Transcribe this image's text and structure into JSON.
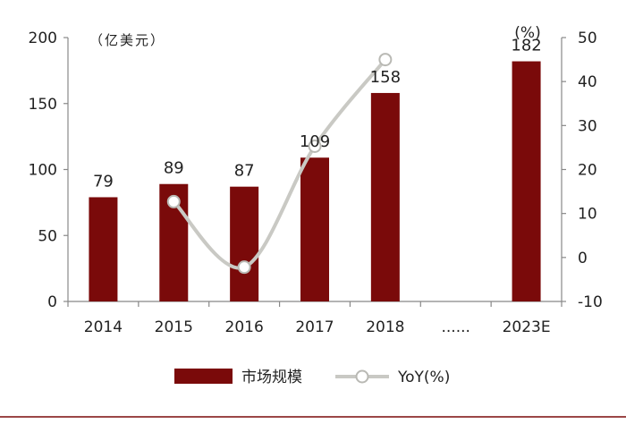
{
  "chart_data": {
    "type": "bar",
    "categories": [
      "2014",
      "2015",
      "2016",
      "2017",
      "2018",
      "......",
      "2023E"
    ],
    "series": [
      {
        "name": "市场规模",
        "type": "bar",
        "axis": "left",
        "values": [
          79,
          89,
          87,
          109,
          158,
          null,
          182
        ],
        "labels": [
          "79",
          "89",
          "87",
          "109",
          "158",
          "",
          "182"
        ],
        "color": "#7a0a0a"
      },
      {
        "name": "YoY(%)",
        "type": "line",
        "axis": "right",
        "values": [
          null,
          12.7,
          -2.2,
          25.3,
          45.0,
          null,
          null
        ],
        "color": "#c9c9c4"
      }
    ],
    "left_axis": {
      "unit": "（亿美元）",
      "ylim": [
        0,
        200
      ],
      "ticks": [
        "0",
        "50",
        "100",
        "150",
        "200"
      ]
    },
    "right_axis": {
      "unit": "(%)",
      "ylim": [
        -10,
        50
      ],
      "ticks": [
        "-10",
        "0",
        "10",
        "20",
        "30",
        "40",
        "50"
      ]
    },
    "grid": false,
    "legend_position": "bottom"
  },
  "colors": {
    "bar": "#7a0a0a",
    "line": "#c9c9c4",
    "axis": "#888888",
    "rule": "#7a0a0a"
  }
}
